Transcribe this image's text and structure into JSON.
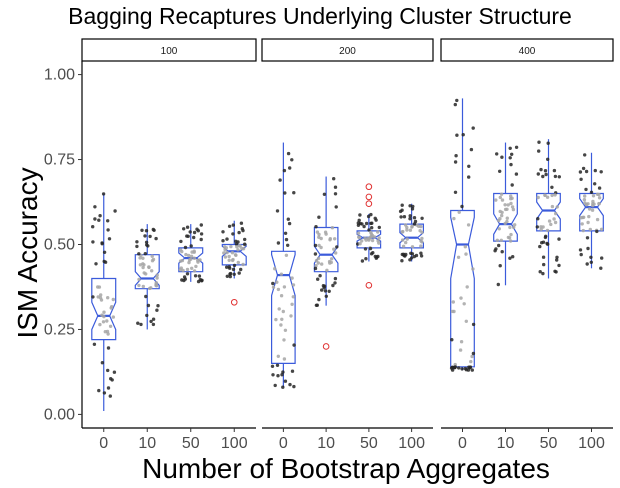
{
  "chart_data": {
    "type": "boxplot",
    "title": "Bagging Recaptures Underlying Cluster Structure",
    "xlabel": "Number of Bootstrap Aggregates",
    "ylabel": "ISM Accuracy",
    "categories": [
      "0",
      "10",
      "50",
      "100"
    ],
    "ylim": [
      -0.04,
      1.04
    ],
    "yticks": [
      0.0,
      0.25,
      0.5,
      0.75,
      1.0
    ],
    "ytick_labels": [
      "0.00",
      "0.25",
      "0.50",
      "0.75",
      "1.00"
    ],
    "grid": false,
    "legend": "none",
    "colors": {
      "box": "#3b5bdb",
      "outlier": "#e03131",
      "point_dark": "#262626",
      "point_light": "#a6a6a6"
    },
    "panels": [
      {
        "label": "100",
        "boxes": [
          {
            "category": "0",
            "whisker_low": 0.01,
            "q1": 0.22,
            "median": 0.29,
            "q3": 0.4,
            "whisker_high": 0.65,
            "notch": [
              0.25,
              0.33
            ],
            "outliers": []
          },
          {
            "category": "10",
            "whisker_low": 0.25,
            "q1": 0.37,
            "median": 0.4,
            "q3": 0.47,
            "whisker_high": 0.56,
            "notch": [
              0.38,
              0.42
            ],
            "outliers": []
          },
          {
            "category": "50",
            "whisker_low": 0.39,
            "q1": 0.42,
            "median": 0.46,
            "q3": 0.49,
            "whisker_high": 0.56,
            "notch": [
              0.445,
              0.475
            ],
            "outliers": []
          },
          {
            "category": "100",
            "whisker_low": 0.4,
            "q1": 0.44,
            "median": 0.48,
            "q3": 0.5,
            "whisker_high": 0.57,
            "notch": [
              0.465,
              0.495
            ],
            "outliers": [
              0.33
            ]
          }
        ]
      },
      {
        "label": "200",
        "boxes": [
          {
            "category": "0",
            "whisker_low": 0.08,
            "q1": 0.15,
            "median": 0.41,
            "q3": 0.48,
            "whisker_high": 0.8,
            "notch": [
              0.35,
              0.47
            ],
            "outliers": []
          },
          {
            "category": "10",
            "whisker_low": 0.32,
            "q1": 0.42,
            "median": 0.47,
            "q3": 0.55,
            "whisker_high": 0.7,
            "notch": [
              0.445,
              0.495
            ],
            "outliers": [
              0.2
            ]
          },
          {
            "category": "50",
            "whisker_low": 0.45,
            "q1": 0.49,
            "median": 0.52,
            "q3": 0.54,
            "whisker_high": 0.59,
            "notch": [
              0.51,
              0.53
            ],
            "outliers": [
              0.67,
              0.64,
              0.62,
              0.38
            ]
          },
          {
            "category": "100",
            "whisker_low": 0.45,
            "q1": 0.49,
            "median": 0.52,
            "q3": 0.56,
            "whisker_high": 0.62,
            "notch": [
              0.505,
              0.535
            ],
            "outliers": []
          }
        ]
      },
      {
        "label": "400",
        "boxes": [
          {
            "category": "0",
            "whisker_low": 0.13,
            "q1": 0.14,
            "median": 0.5,
            "q3": 0.6,
            "whisker_high": 0.93,
            "notch": [
              0.4,
              0.58
            ],
            "outliers": []
          },
          {
            "category": "10",
            "whisker_low": 0.38,
            "q1": 0.51,
            "median": 0.56,
            "q3": 0.65,
            "whisker_high": 0.8,
            "notch": [
              0.53,
              0.59
            ],
            "outliers": []
          },
          {
            "category": "50",
            "whisker_low": 0.4,
            "q1": 0.54,
            "median": 0.6,
            "q3": 0.65,
            "whisker_high": 0.81,
            "notch": [
              0.575,
              0.625
            ],
            "outliers": []
          },
          {
            "category": "100",
            "whisker_low": 0.43,
            "q1": 0.54,
            "median": 0.61,
            "q3": 0.65,
            "whisker_high": 0.77,
            "notch": [
              0.585,
              0.635
            ],
            "outliers": []
          }
        ]
      }
    ]
  }
}
